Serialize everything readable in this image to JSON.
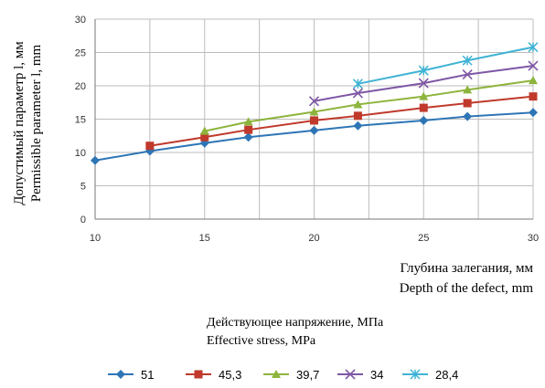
{
  "chart_data": {
    "type": "line",
    "ylabel_lines": [
      "Допустимый параметр l, мм",
      "Permissible parameter l, mm"
    ],
    "xlabel_lines": [
      "Глубина залегания, мм",
      "Depth of the defect, mm"
    ],
    "legend_title_lines": [
      "Действующее напряжение, МПа",
      "Effective stress, MPa"
    ],
    "xlim": [
      10,
      30
    ],
    "ylim": [
      0,
      30
    ],
    "xticks": [
      10,
      15,
      20,
      25,
      30
    ],
    "yticks": [
      0,
      5,
      10,
      15,
      20,
      25,
      30
    ],
    "grid": true,
    "legend_position": "bottom",
    "series": [
      {
        "name": "51",
        "color": "#2e75b6",
        "marker": "diamond",
        "x": [
          10,
          12.5,
          15,
          17,
          20,
          22,
          25,
          27,
          30
        ],
        "y": [
          8.8,
          10.2,
          11.4,
          12.3,
          13.3,
          14.0,
          14.8,
          15.4,
          16.0
        ]
      },
      {
        "name": "45,3",
        "color": "#c0392b",
        "marker": "square",
        "x": [
          12.5,
          15,
          17,
          20,
          22,
          25,
          27,
          30
        ],
        "y": [
          11.0,
          12.3,
          13.4,
          14.8,
          15.5,
          16.7,
          17.4,
          18.4
        ]
      },
      {
        "name": "39,7",
        "color": "#8db43c",
        "marker": "triangle",
        "x": [
          15,
          17,
          20,
          22,
          25,
          27,
          30
        ],
        "y": [
          13.2,
          14.6,
          16.1,
          17.2,
          18.4,
          19.4,
          20.8
        ]
      },
      {
        "name": "34",
        "color": "#7e57a5",
        "marker": "x",
        "x": [
          20,
          22,
          25,
          27,
          30
        ],
        "y": [
          17.7,
          18.9,
          20.4,
          21.7,
          23.0
        ]
      },
      {
        "name": "28,4",
        "color": "#3fb3d4",
        "marker": "star",
        "x": [
          22,
          25,
          27,
          30
        ],
        "y": [
          20.3,
          22.3,
          23.8,
          25.8
        ]
      }
    ]
  }
}
